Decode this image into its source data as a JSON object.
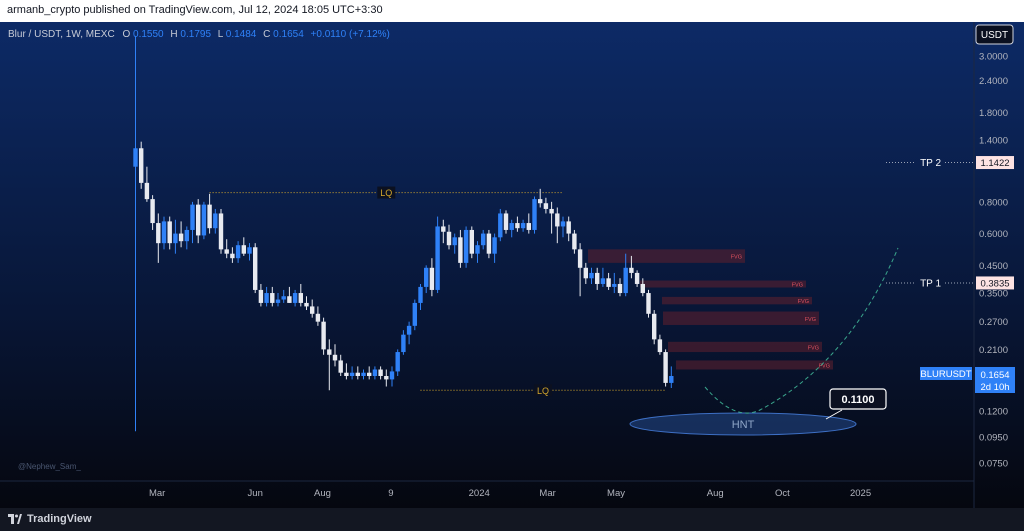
{
  "header": {
    "publisher": "armanb_crypto published on TradingView.com, Jul 12, 2024 18:05 UTC+3:30"
  },
  "footer": {
    "brand": "TradingView"
  },
  "chart_data": {
    "type": "candlestick",
    "symbol_line": "Blur / USDT, 1W, MEXC",
    "ohlc_text": {
      "o_label": "O",
      "o_value": "0.1550",
      "h_label": "H",
      "h_value": "0.1795",
      "l_label": "L",
      "l_value": "0.1484",
      "c_label": "C",
      "c_value": "0.1654",
      "change": "+0.0110 (+7.12%)"
    },
    "currency_button": "USDT",
    "y_scale": "log",
    "ylim": [
      0.066,
      3.6
    ],
    "y_ticks": [
      "3.0000",
      "2.4000",
      "1.8000",
      "1.4000",
      "0.8000",
      "0.6000",
      "0.4500",
      "0.3500",
      "0.2700",
      "0.2100",
      "0.1200",
      "0.0950",
      "0.0750"
    ],
    "x_ticks": [
      "Mar",
      "Jun",
      "Aug",
      "9",
      "2024",
      "Mar",
      "May",
      "Aug",
      "Oct",
      "2025"
    ],
    "last_price": {
      "symbol": "BLURUSDT",
      "value": "0.1654",
      "countdown": "2d 10h",
      "color": "#2f81f7"
    },
    "targets": [
      {
        "label": "TP 2",
        "value": "1.1422",
        "price": 1.1422
      },
      {
        "label": "TP 1",
        "value": "0.3835",
        "price": 0.3835
      }
    ],
    "liquidity_levels": [
      {
        "label": "LQ",
        "price": 0.87,
        "from_index": 13,
        "to_index": 75
      },
      {
        "label": "LQ",
        "price": 0.145,
        "from_index": 50,
        "to_index": 93
      }
    ],
    "fvg_zones": [
      {
        "label": "FVG",
        "low": 0.46,
        "high": 0.52
      },
      {
        "label": "FVG",
        "low": 0.368,
        "high": 0.392
      },
      {
        "label": "FVG",
        "low": 0.316,
        "high": 0.338
      },
      {
        "label": "FVG",
        "low": 0.262,
        "high": 0.296
      },
      {
        "label": "FVG",
        "low": 0.205,
        "high": 0.225
      },
      {
        "label": "FVG",
        "low": 0.175,
        "high": 0.19
      }
    ],
    "target_zone": {
      "label": "HNT"
    },
    "callout": {
      "value": "0.1100",
      "price": 0.11
    },
    "watermark": "@Nephew_Sam_",
    "colors": {
      "up": "#2f81f7",
      "down": "#e8eaf0",
      "fvg": "#e05260",
      "lq": "#d4a72c",
      "background_top": "#0d2a66",
      "background_bottom": "#05070f"
    },
    "candles": [
      [
        1.1,
        3.6,
        0.1,
        1.3
      ],
      [
        1.3,
        1.38,
        0.9,
        0.95
      ],
      [
        0.95,
        1.1,
        0.8,
        0.82
      ],
      [
        0.82,
        0.85,
        0.62,
        0.66
      ],
      [
        0.66,
        0.72,
        0.46,
        0.55
      ],
      [
        0.55,
        0.7,
        0.52,
        0.67
      ],
      [
        0.67,
        0.7,
        0.52,
        0.55
      ],
      [
        0.55,
        0.68,
        0.5,
        0.6
      ],
      [
        0.6,
        0.67,
        0.53,
        0.56
      ],
      [
        0.56,
        0.64,
        0.52,
        0.62
      ],
      [
        0.62,
        0.8,
        0.55,
        0.78
      ],
      [
        0.78,
        0.82,
        0.55,
        0.59
      ],
      [
        0.59,
        0.8,
        0.57,
        0.78
      ],
      [
        0.78,
        0.86,
        0.6,
        0.63
      ],
      [
        0.63,
        0.75,
        0.6,
        0.72
      ],
      [
        0.72,
        0.75,
        0.5,
        0.52
      ],
      [
        0.52,
        0.57,
        0.48,
        0.5
      ],
      [
        0.5,
        0.53,
        0.46,
        0.48
      ],
      [
        0.48,
        0.56,
        0.46,
        0.54
      ],
      [
        0.54,
        0.58,
        0.49,
        0.5
      ],
      [
        0.5,
        0.55,
        0.47,
        0.53
      ],
      [
        0.53,
        0.55,
        0.35,
        0.36
      ],
      [
        0.36,
        0.38,
        0.31,
        0.32
      ],
      [
        0.32,
        0.37,
        0.31,
        0.35
      ],
      [
        0.35,
        0.37,
        0.31,
        0.32
      ],
      [
        0.32,
        0.35,
        0.31,
        0.33
      ],
      [
        0.33,
        0.36,
        0.32,
        0.34
      ],
      [
        0.34,
        0.37,
        0.32,
        0.32
      ],
      [
        0.32,
        0.36,
        0.31,
        0.35
      ],
      [
        0.35,
        0.38,
        0.31,
        0.32
      ],
      [
        0.32,
        0.34,
        0.3,
        0.31
      ],
      [
        0.31,
        0.33,
        0.28,
        0.29
      ],
      [
        0.29,
        0.31,
        0.26,
        0.27
      ],
      [
        0.27,
        0.28,
        0.2,
        0.21
      ],
      [
        0.21,
        0.23,
        0.145,
        0.2
      ],
      [
        0.2,
        0.22,
        0.18,
        0.19
      ],
      [
        0.19,
        0.2,
        0.165,
        0.17
      ],
      [
        0.17,
        0.185,
        0.16,
        0.165
      ],
      [
        0.165,
        0.18,
        0.16,
        0.17
      ],
      [
        0.17,
        0.18,
        0.16,
        0.165
      ],
      [
        0.165,
        0.175,
        0.16,
        0.17
      ],
      [
        0.17,
        0.18,
        0.16,
        0.165
      ],
      [
        0.165,
        0.18,
        0.16,
        0.175
      ],
      [
        0.175,
        0.18,
        0.16,
        0.165
      ],
      [
        0.165,
        0.175,
        0.15,
        0.16
      ],
      [
        0.16,
        0.18,
        0.15,
        0.172
      ],
      [
        0.172,
        0.21,
        0.165,
        0.205
      ],
      [
        0.205,
        0.25,
        0.2,
        0.24
      ],
      [
        0.24,
        0.27,
        0.22,
        0.26
      ],
      [
        0.26,
        0.33,
        0.25,
        0.32
      ],
      [
        0.32,
        0.38,
        0.3,
        0.37
      ],
      [
        0.37,
        0.45,
        0.35,
        0.44
      ],
      [
        0.44,
        0.48,
        0.34,
        0.36
      ],
      [
        0.36,
        0.7,
        0.35,
        0.64
      ],
      [
        0.64,
        0.68,
        0.55,
        0.61
      ],
      [
        0.61,
        0.65,
        0.52,
        0.54
      ],
      [
        0.54,
        0.6,
        0.5,
        0.58
      ],
      [
        0.58,
        0.62,
        0.44,
        0.46
      ],
      [
        0.46,
        0.64,
        0.44,
        0.62
      ],
      [
        0.62,
        0.64,
        0.48,
        0.5
      ],
      [
        0.5,
        0.56,
        0.46,
        0.54
      ],
      [
        0.54,
        0.62,
        0.52,
        0.6
      ],
      [
        0.6,
        0.62,
        0.48,
        0.5
      ],
      [
        0.5,
        0.6,
        0.46,
        0.58
      ],
      [
        0.58,
        0.75,
        0.56,
        0.72
      ],
      [
        0.72,
        0.74,
        0.6,
        0.62
      ],
      [
        0.62,
        0.68,
        0.58,
        0.66
      ],
      [
        0.66,
        0.7,
        0.61,
        0.63
      ],
      [
        0.63,
        0.68,
        0.61,
        0.66
      ],
      [
        0.66,
        0.72,
        0.6,
        0.62
      ],
      [
        0.62,
        0.84,
        0.6,
        0.82
      ],
      [
        0.82,
        0.9,
        0.76,
        0.79
      ],
      [
        0.79,
        0.83,
        0.72,
        0.75
      ],
      [
        0.75,
        0.8,
        0.6,
        0.72
      ],
      [
        0.72,
        0.76,
        0.55,
        0.64
      ],
      [
        0.64,
        0.7,
        0.58,
        0.67
      ],
      [
        0.67,
        0.7,
        0.56,
        0.6
      ],
      [
        0.6,
        0.62,
        0.5,
        0.52
      ],
      [
        0.52,
        0.55,
        0.34,
        0.44
      ],
      [
        0.44,
        0.46,
        0.38,
        0.4
      ],
      [
        0.4,
        0.44,
        0.38,
        0.42
      ],
      [
        0.42,
        0.44,
        0.36,
        0.38
      ],
      [
        0.38,
        0.44,
        0.37,
        0.4
      ],
      [
        0.4,
        0.42,
        0.36,
        0.37
      ],
      [
        0.37,
        0.42,
        0.35,
        0.38
      ],
      [
        0.38,
        0.4,
        0.34,
        0.35
      ],
      [
        0.35,
        0.5,
        0.34,
        0.44
      ],
      [
        0.44,
        0.49,
        0.4,
        0.42
      ],
      [
        0.42,
        0.43,
        0.37,
        0.38
      ],
      [
        0.38,
        0.4,
        0.34,
        0.35
      ],
      [
        0.35,
        0.36,
        0.28,
        0.29
      ],
      [
        0.29,
        0.3,
        0.22,
        0.23
      ],
      [
        0.23,
        0.24,
        0.2,
        0.205
      ],
      [
        0.205,
        0.21,
        0.15,
        0.155
      ],
      [
        0.155,
        0.18,
        0.148,
        0.165
      ]
    ]
  }
}
